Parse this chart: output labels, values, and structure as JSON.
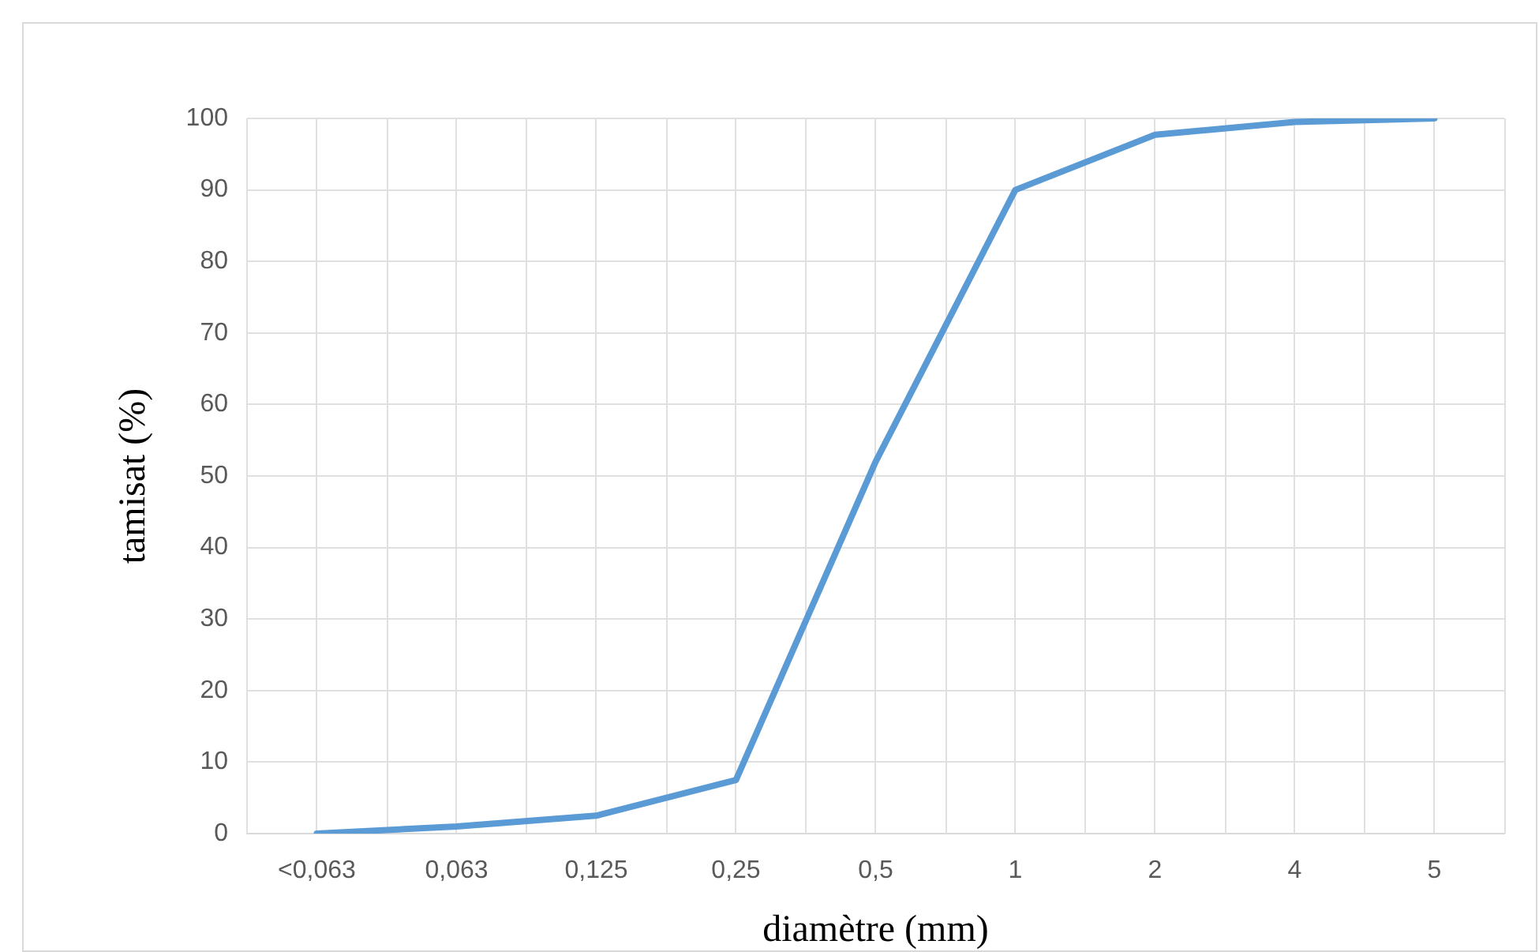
{
  "chart_data": {
    "type": "line",
    "xlabel": "diamètre (mm)",
    "ylabel": "tamisat (%)",
    "categories": [
      "<0,063",
      "0,063",
      "0,125",
      "0,25",
      "0,5",
      "1",
      "2",
      "4",
      "5"
    ],
    "series": [
      {
        "color": "#5b9bd5",
        "values": [
          0,
          1,
          2.5,
          7.5,
          52,
          90,
          97.7,
          99.5,
          100
        ]
      }
    ],
    "ylim": [
      0,
      100
    ],
    "yticks": [
      0,
      10,
      20,
      30,
      40,
      50,
      60,
      70,
      80,
      90,
      100
    ],
    "grid": true,
    "legend": false,
    "marker": "none"
  }
}
